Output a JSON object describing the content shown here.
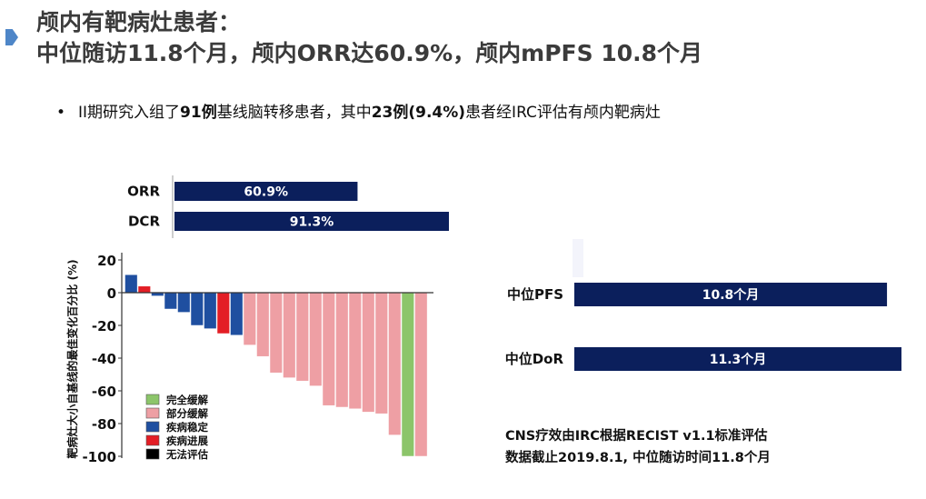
{
  "title": {
    "line1": "颅内有靶病灶患者：",
    "line2": "中位随访11.8个月，颅内ORR达60.9%，颅内mPFS 10.8个月"
  },
  "bullet": {
    "prefix": "II期研究入组了",
    "n_total": "91例",
    "middle": "基线脑转移患者，其中",
    "n_target": "23例(9.4%)",
    "suffix": "患者经IRC评估有颅内靶病灶"
  },
  "colors": {
    "navy": "#0b1f5c",
    "cr": "#8cc56a",
    "pr": "#ee9fa4",
    "sd": "#1f4fa0",
    "pd": "#e31e25",
    "ne": "#000000"
  },
  "chart_data": [
    {
      "type": "bar",
      "orientation": "horizontal",
      "categories": [
        "ORR",
        "DCR"
      ],
      "values": [
        60.9,
        91.3
      ],
      "labels": [
        "60.9%",
        "91.3%"
      ],
      "xlim": [
        0,
        100
      ]
    },
    {
      "type": "bar",
      "subtype": "waterfall",
      "ylabel": "靶病灶大小自基线的最佳变化百分比 (%)",
      "ylim": [
        -100,
        20
      ],
      "yticks": [
        20,
        0,
        -20,
        -40,
        -60,
        -80,
        -100
      ],
      "grid": false,
      "legend_position": "bottom-left",
      "legend": [
        {
          "key": "cr",
          "label": "完全缓解"
        },
        {
          "key": "pr",
          "label": "部分缓解"
        },
        {
          "key": "sd",
          "label": "疾病稳定"
        },
        {
          "key": "pd",
          "label": "疾病进展"
        },
        {
          "key": "ne",
          "label": "无法评估"
        }
      ],
      "values": [
        11,
        4,
        -2,
        -10,
        -12,
        -20,
        -22,
        -25,
        -26,
        -32,
        -39,
        -49,
        -52,
        -54,
        -57,
        -69,
        -70,
        -71,
        -73,
        -74,
        -87,
        -100,
        -100
      ],
      "responses": [
        "sd",
        "pd",
        "sd",
        "sd",
        "sd",
        "sd",
        "sd",
        "pd",
        "sd",
        "pr",
        "pr",
        "pr",
        "pr",
        "pr",
        "pr",
        "pr",
        "pr",
        "pr",
        "pr",
        "pr",
        "pr",
        "cr",
        "pr"
      ]
    },
    {
      "type": "bar",
      "orientation": "horizontal",
      "categories": [
        "中位PFS",
        "中位DoR"
      ],
      "values": [
        10.8,
        11.3
      ],
      "labels": [
        "10.8个月",
        "11.3个月"
      ],
      "unit": "个月"
    }
  ],
  "notes": {
    "line1": "CNS疗效由IRC根据RECIST v1.1标准评估",
    "line2": "数据截止2019.8.1, 中位随访时间11.8个月"
  }
}
